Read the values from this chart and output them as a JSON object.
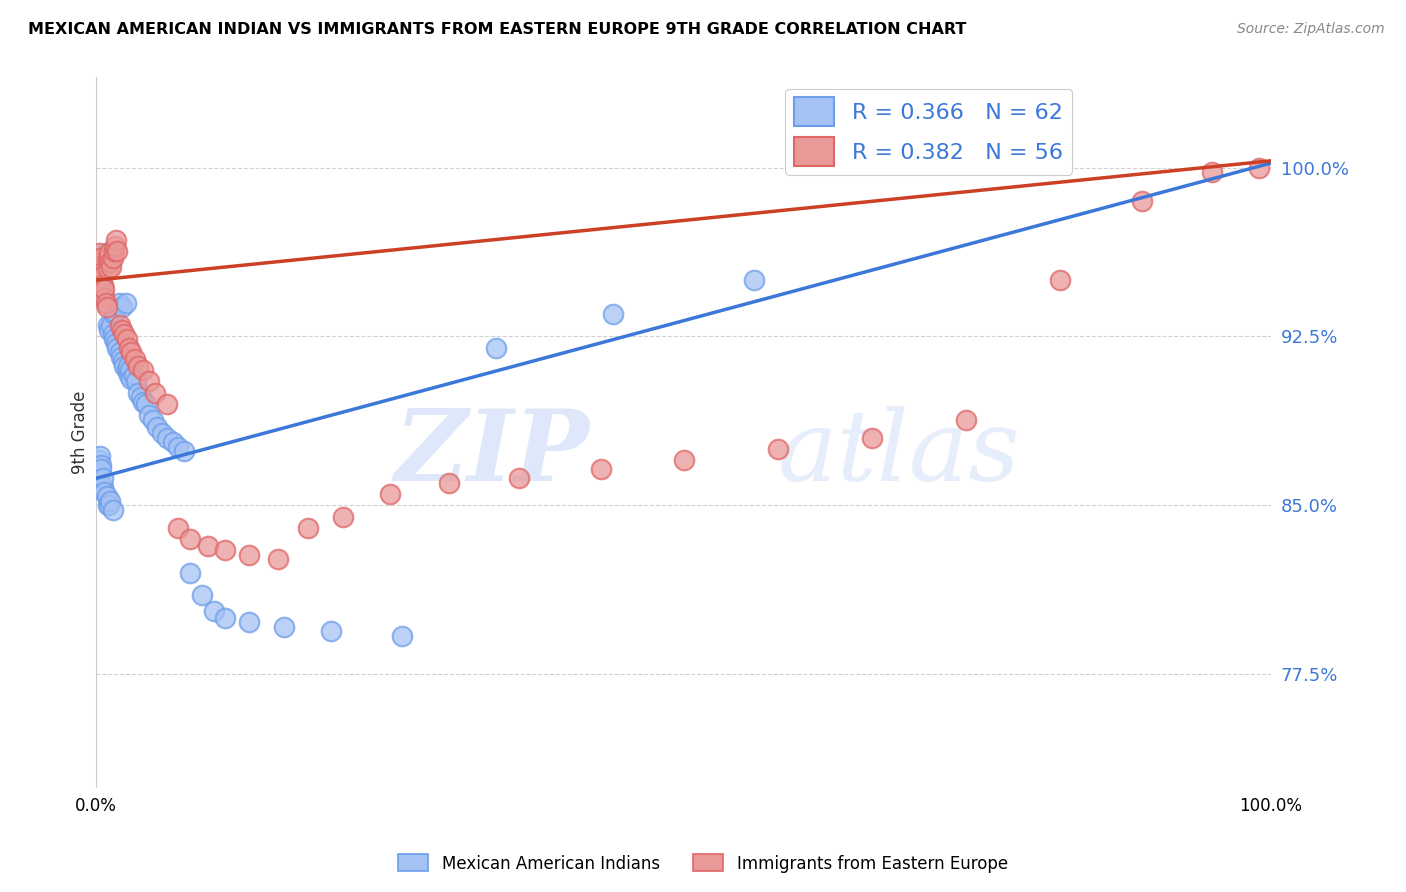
{
  "title": "MEXICAN AMERICAN INDIAN VS IMMIGRANTS FROM EASTERN EUROPE 9TH GRADE CORRELATION CHART",
  "source": "Source: ZipAtlas.com",
  "ylabel": "9th Grade",
  "ytick_labels": [
    "77.5%",
    "85.0%",
    "92.5%",
    "100.0%"
  ],
  "ytick_values": [
    0.775,
    0.85,
    0.925,
    1.0
  ],
  "xlim": [
    0.0,
    1.0
  ],
  "ylim": [
    0.725,
    1.04
  ],
  "blue_color": "#a4c2f4",
  "pink_color": "#ea9999",
  "blue_edge_color": "#6d9eeb",
  "pink_edge_color": "#e06666",
  "blue_line_color": "#3c78d8",
  "pink_line_color": "#cc4125",
  "watermark_zip": "ZIP",
  "watermark_atlas": "atlas",
  "blue_label": "R = 0.366   N = 62",
  "pink_label": "R = 0.382   N = 56",
  "legend_blue_face": "#a4c2f4",
  "legend_blue_edge": "#6d9eeb",
  "legend_pink_face": "#ea9999",
  "legend_pink_edge": "#e06666",
  "blue_scatter_x": [
    0.002,
    0.003,
    0.003,
    0.004,
    0.004,
    0.005,
    0.006,
    0.006,
    0.007,
    0.008,
    0.008,
    0.009,
    0.01,
    0.01,
    0.011,
    0.011,
    0.012,
    0.013,
    0.014,
    0.014,
    0.015,
    0.015,
    0.016,
    0.017,
    0.018,
    0.019,
    0.02,
    0.021,
    0.022,
    0.023,
    0.024,
    0.025,
    0.026,
    0.027,
    0.028,
    0.029,
    0.03,
    0.032,
    0.034,
    0.036,
    0.038,
    0.04,
    0.042,
    0.045,
    0.048,
    0.052,
    0.056,
    0.06,
    0.065,
    0.07,
    0.075,
    0.08,
    0.09,
    0.1,
    0.11,
    0.13,
    0.16,
    0.2,
    0.26,
    0.34,
    0.44,
    0.56
  ],
  "blue_scatter_y": [
    0.87,
    0.864,
    0.872,
    0.868,
    0.866,
    0.96,
    0.858,
    0.862,
    0.856,
    0.96,
    0.962,
    0.854,
    0.93,
    0.85,
    0.928,
    0.85,
    0.852,
    0.93,
    0.926,
    0.848,
    0.935,
    0.924,
    0.936,
    0.922,
    0.92,
    0.94,
    0.918,
    0.916,
    0.938,
    0.914,
    0.912,
    0.94,
    0.91,
    0.912,
    0.908,
    0.91,
    0.906,
    0.908,
    0.905,
    0.9,
    0.898,
    0.896,
    0.895,
    0.89,
    0.888,
    0.885,
    0.882,
    0.88,
    0.878,
    0.876,
    0.874,
    0.82,
    0.81,
    0.803,
    0.8,
    0.798,
    0.796,
    0.794,
    0.792,
    0.92,
    0.935,
    0.95
  ],
  "pink_scatter_x": [
    0.002,
    0.002,
    0.003,
    0.003,
    0.004,
    0.004,
    0.005,
    0.005,
    0.006,
    0.006,
    0.007,
    0.007,
    0.008,
    0.009,
    0.01,
    0.01,
    0.011,
    0.012,
    0.013,
    0.014,
    0.015,
    0.016,
    0.017,
    0.018,
    0.02,
    0.022,
    0.024,
    0.026,
    0.028,
    0.03,
    0.033,
    0.036,
    0.04,
    0.045,
    0.05,
    0.06,
    0.07,
    0.08,
    0.095,
    0.11,
    0.13,
    0.155,
    0.18,
    0.21,
    0.25,
    0.3,
    0.36,
    0.43,
    0.5,
    0.58,
    0.66,
    0.74,
    0.82,
    0.89,
    0.95,
    0.99
  ],
  "pink_scatter_y": [
    0.958,
    0.962,
    0.955,
    0.96,
    0.95,
    0.953,
    0.948,
    0.952,
    0.945,
    0.948,
    0.942,
    0.946,
    0.94,
    0.938,
    0.955,
    0.96,
    0.962,
    0.958,
    0.956,
    0.96,
    0.963,
    0.965,
    0.968,
    0.963,
    0.93,
    0.928,
    0.926,
    0.924,
    0.92,
    0.918,
    0.915,
    0.912,
    0.91,
    0.905,
    0.9,
    0.895,
    0.84,
    0.835,
    0.832,
    0.83,
    0.828,
    0.826,
    0.84,
    0.845,
    0.855,
    0.86,
    0.862,
    0.866,
    0.87,
    0.875,
    0.88,
    0.888,
    0.95,
    0.985,
    0.998,
    1.0
  ]
}
